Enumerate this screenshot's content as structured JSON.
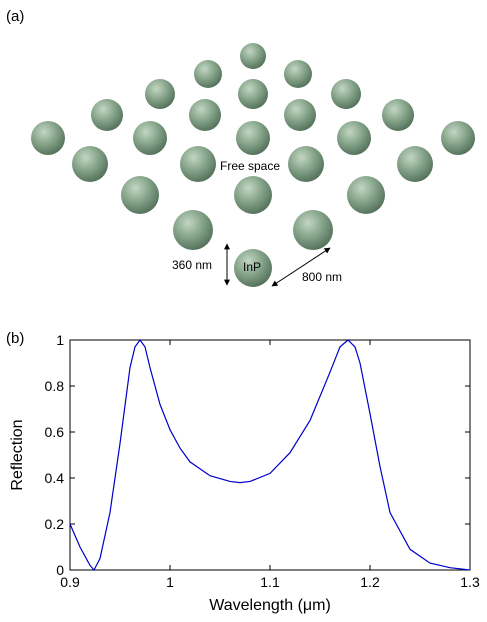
{
  "figure": {
    "panel_a_label": "(a)",
    "panel_b_label": "(b)"
  },
  "diagram": {
    "free_space_label": "Free space",
    "material_label": "InP",
    "diameter_label": "360 nm",
    "period_label": "800 nm",
    "sphere_color": "#8aa88e"
  },
  "chart_data": {
    "type": "line",
    "title": "",
    "xlabel": "Wavelength (μm)",
    "ylabel": "Reflection",
    "xlim": [
      0.9,
      1.3
    ],
    "ylim": [
      0,
      1
    ],
    "xticks": [
      "0.9",
      "1",
      "1.1",
      "1.2",
      "1.3"
    ],
    "yticks": [
      "0",
      "0.2",
      "0.4",
      "0.6",
      "0.8",
      "1"
    ],
    "grid": false,
    "line_color": "#0000cc",
    "series": [
      {
        "x": [
          0.9,
          0.91,
          0.92,
          0.924,
          0.93,
          0.94,
          0.95,
          0.96,
          0.965,
          0.97,
          0.975,
          0.98,
          0.99,
          1.0,
          1.01,
          1.02,
          1.04,
          1.06,
          1.07,
          1.08,
          1.1,
          1.12,
          1.14,
          1.16,
          1.17,
          1.178,
          1.185,
          1.19,
          1.2,
          1.21,
          1.22,
          1.24,
          1.26,
          1.28,
          1.3
        ],
        "y": [
          0.2,
          0.1,
          0.02,
          0.0,
          0.05,
          0.25,
          0.55,
          0.88,
          0.97,
          1.0,
          0.97,
          0.88,
          0.72,
          0.61,
          0.53,
          0.47,
          0.41,
          0.385,
          0.38,
          0.385,
          0.42,
          0.51,
          0.65,
          0.86,
          0.97,
          1.0,
          0.97,
          0.9,
          0.68,
          0.45,
          0.25,
          0.09,
          0.03,
          0.01,
          0.0
        ]
      }
    ]
  }
}
